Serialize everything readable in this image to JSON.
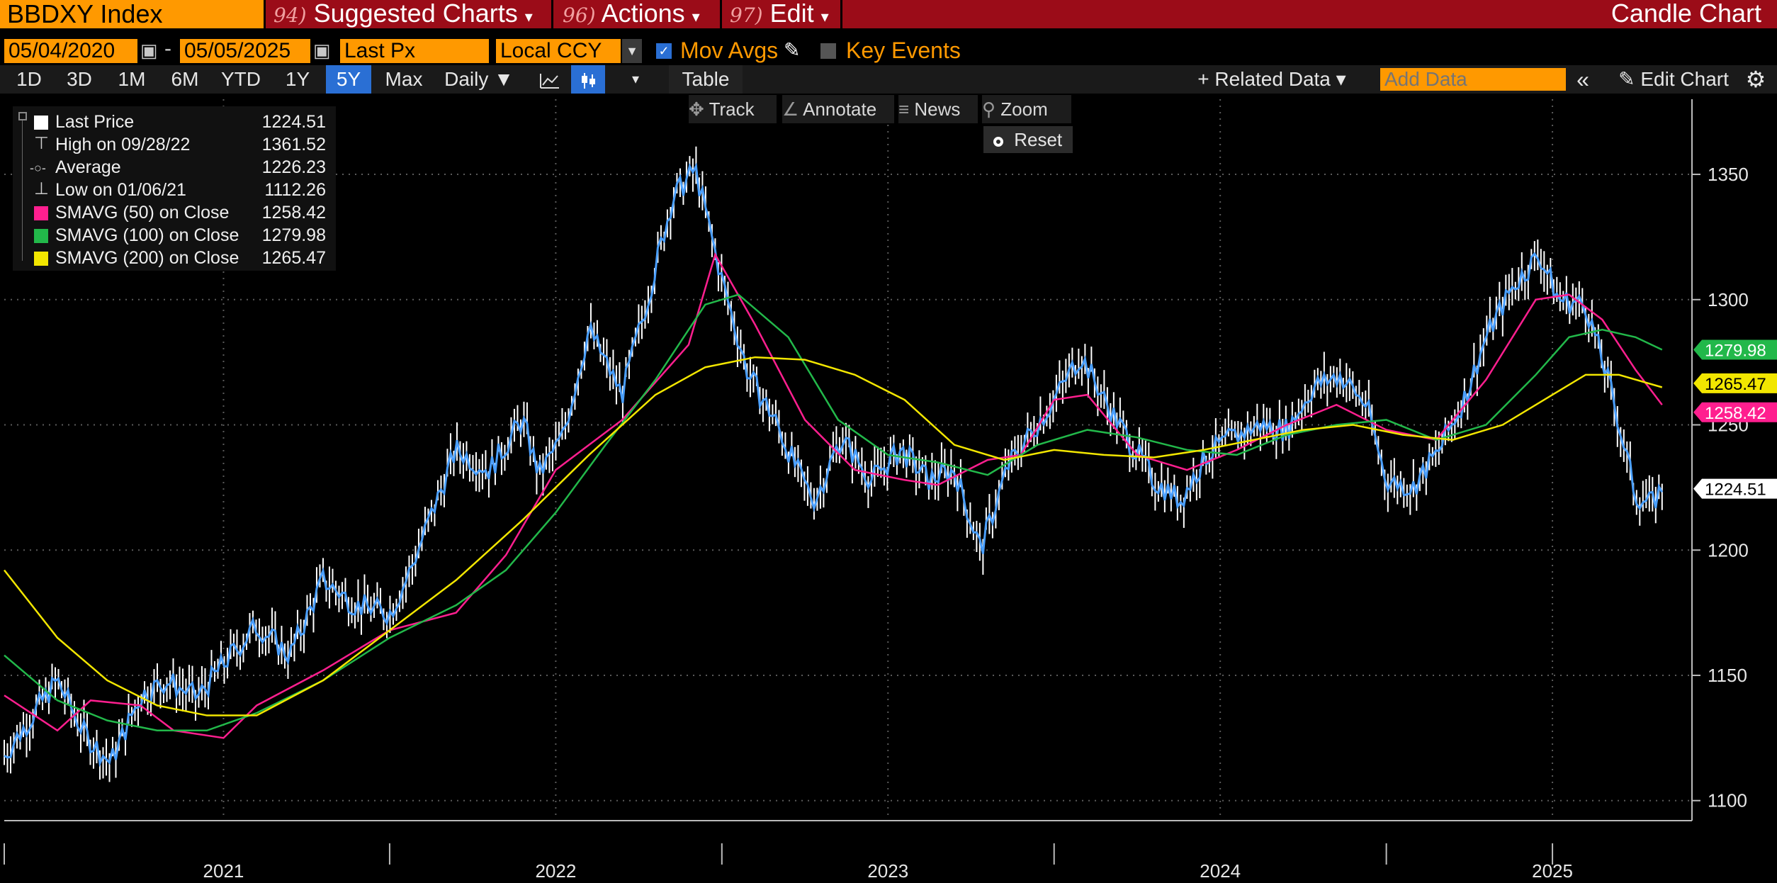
{
  "header": {
    "ticker": "BBDXY Index",
    "menu": [
      {
        "num": "94)",
        "label": "Suggested Charts",
        "arrow": "▾"
      },
      {
        "num": "96)",
        "label": "Actions",
        "arrow": "▾"
      },
      {
        "num": "97)",
        "label": "Edit",
        "arrow": "▾"
      }
    ],
    "chart_type": "Candle Chart",
    "colors": {
      "bar": "#9b0c18",
      "accent": "#ff9900"
    }
  },
  "controls": {
    "start_date": "05/04/2020",
    "date_dash": "-",
    "end_date": "05/05/2025",
    "field": "Last Px",
    "currency": "Local CCY",
    "mov_avgs_label": "Mov Avgs",
    "key_events_label": "Key Events",
    "mov_avgs_checked": true,
    "key_events_checked": false
  },
  "toolbar": {
    "periods": [
      "1D",
      "3D",
      "1M",
      "6M",
      "YTD",
      "1Y",
      "5Y",
      "Max"
    ],
    "selected_period": "5Y",
    "frequency": "Daily ▼",
    "table_label": "Table",
    "related_data_label": "+ Related Data ▾",
    "add_data_placeholder": "Add Data",
    "edit_chart_label": "Edit Chart",
    "icons": [
      "line-chart-icon",
      "candle-chart-icon",
      "dropdown-icon",
      "collapse-icon",
      "pencil-icon",
      "gear-icon"
    ]
  },
  "tools": {
    "track": "Track",
    "annotate": "Annotate",
    "news": "News",
    "zoom": "Zoom",
    "reset": "Reset"
  },
  "legend": [
    {
      "name": "Last Price",
      "value": "1224.51",
      "color": "#ffffff",
      "marker": "square"
    },
    {
      "name": "High on 09/28/22",
      "value": "1361.52",
      "color": "#cccccc",
      "marker": "high"
    },
    {
      "name": "Average",
      "value": "1226.23",
      "color": "#cccccc",
      "marker": "avg"
    },
    {
      "name": "Low on 01/06/21",
      "value": "1112.26",
      "color": "#cccccc",
      "marker": "low"
    },
    {
      "name": "SMAVG (50)  on Close",
      "value": "1258.42",
      "color": "#ff1f8f",
      "marker": "square"
    },
    {
      "name": "SMAVG (100)  on Close",
      "value": "1279.98",
      "color": "#22b84a",
      "marker": "square"
    },
    {
      "name": "SMAVG (200)  on Close",
      "value": "1265.47",
      "color": "#f2e600",
      "marker": "square"
    }
  ],
  "chart_data": {
    "type": "line",
    "x_labels": [
      "2021",
      "2022",
      "2023",
      "2024",
      "2025"
    ],
    "y_ticks": [
      1100,
      1150,
      1200,
      1250,
      1300,
      1350
    ],
    "ylim": [
      1092,
      1380
    ],
    "xlim": [
      2020.34,
      2025.42
    ],
    "grid": true,
    "series": [
      {
        "name": "Last Price",
        "color": "#4a9fff",
        "x": [
          2020.34,
          2020.42,
          2020.5,
          2020.58,
          2020.66,
          2020.75,
          2020.83,
          2020.92,
          2021.01,
          2021.1,
          2021.2,
          2021.3,
          2021.4,
          2021.5,
          2021.55,
          2021.6,
          2021.7,
          2021.8,
          2021.9,
          2021.95,
          2022.02,
          2022.1,
          2022.2,
          2022.28,
          2022.35,
          2022.42,
          2022.5,
          2022.58,
          2022.66,
          2022.74,
          2022.78,
          2022.86,
          2022.95,
          2023.04,
          2023.12,
          2023.2,
          2023.28,
          2023.36,
          2023.42,
          2023.5,
          2023.58,
          2023.66,
          2023.72,
          2023.8,
          2023.88,
          2023.96,
          2024.04,
          2024.12,
          2024.2,
          2024.28,
          2024.36,
          2024.44,
          2024.5,
          2024.58,
          2024.66,
          2024.74,
          2024.8,
          2024.88,
          2024.96,
          2025.02,
          2025.1,
          2025.18,
          2025.25,
          2025.3,
          2025.33
        ],
        "values": [
          1118,
          1133,
          1148,
          1127,
          1115,
          1142,
          1148,
          1141,
          1156,
          1170,
          1158,
          1188,
          1178,
          1175,
          1188,
          1205,
          1240,
          1232,
          1252,
          1230,
          1245,
          1288,
          1262,
          1302,
          1340,
          1352,
          1308,
          1270,
          1252,
          1228,
          1220,
          1245,
          1228,
          1240,
          1228,
          1232,
          1200,
          1233,
          1245,
          1260,
          1278,
          1258,
          1245,
          1228,
          1220,
          1238,
          1245,
          1250,
          1248,
          1265,
          1270,
          1258,
          1228,
          1225,
          1240,
          1262,
          1285,
          1305,
          1318,
          1300,
          1298,
          1262,
          1222,
          1218,
          1225
        ]
      },
      {
        "name": "SMAVG (50)  on Close",
        "color": "#ff1f8f",
        "x": [
          2020.34,
          2020.5,
          2020.6,
          2020.75,
          2020.85,
          2021.0,
          2021.1,
          2021.3,
          2021.5,
          2021.7,
          2021.85,
          2022.0,
          2022.2,
          2022.4,
          2022.48,
          2022.6,
          2022.75,
          2022.9,
          2023.05,
          2023.15,
          2023.3,
          2023.4,
          2023.5,
          2023.6,
          2023.75,
          2023.9,
          2024.05,
          2024.2,
          2024.35,
          2024.5,
          2024.65,
          2024.8,
          2024.95,
          2025.05,
          2025.15,
          2025.25,
          2025.33
        ],
        "values": [
          1142,
          1128,
          1140,
          1138,
          1128,
          1125,
          1138,
          1152,
          1168,
          1175,
          1198,
          1232,
          1252,
          1282,
          1318,
          1290,
          1252,
          1232,
          1228,
          1226,
          1236,
          1238,
          1260,
          1262,
          1238,
          1232,
          1240,
          1250,
          1258,
          1248,
          1244,
          1268,
          1300,
          1302,
          1292,
          1272,
          1258
        ]
      },
      {
        "name": "SMAVG (100)  on Close",
        "color": "#22b84a",
        "x": [
          2020.34,
          2020.5,
          2020.65,
          2020.8,
          2020.95,
          2021.1,
          2021.3,
          2021.5,
          2021.7,
          2021.85,
          2022.0,
          2022.15,
          2022.3,
          2022.45,
          2022.55,
          2022.7,
          2022.85,
          2023.0,
          2023.15,
          2023.3,
          2023.45,
          2023.6,
          2023.75,
          2023.9,
          2024.05,
          2024.2,
          2024.35,
          2024.5,
          2024.65,
          2024.8,
          2024.95,
          2025.05,
          2025.15,
          2025.25,
          2025.33
        ],
        "values": [
          1158,
          1140,
          1132,
          1128,
          1128,
          1135,
          1148,
          1165,
          1178,
          1192,
          1215,
          1242,
          1268,
          1298,
          1302,
          1285,
          1252,
          1238,
          1235,
          1230,
          1242,
          1248,
          1245,
          1240,
          1238,
          1246,
          1250,
          1252,
          1244,
          1250,
          1270,
          1285,
          1288,
          1285,
          1280
        ]
      },
      {
        "name": "SMAVG (200)  on Close",
        "color": "#f2e600",
        "x": [
          2020.34,
          2020.5,
          2020.65,
          2020.8,
          2020.95,
          2021.1,
          2021.3,
          2021.5,
          2021.7,
          2021.9,
          2022.1,
          2022.3,
          2022.45,
          2022.6,
          2022.75,
          2022.9,
          2023.05,
          2023.2,
          2023.35,
          2023.5,
          2023.65,
          2023.8,
          2023.95,
          2024.1,
          2024.25,
          2024.4,
          2024.55,
          2024.7,
          2024.85,
          2025.0,
          2025.1,
          2025.2,
          2025.33
        ],
        "values": [
          1192,
          1165,
          1148,
          1138,
          1134,
          1134,
          1148,
          1168,
          1188,
          1212,
          1238,
          1262,
          1273,
          1277,
          1276,
          1270,
          1260,
          1242,
          1236,
          1240,
          1238,
          1237,
          1240,
          1244,
          1248,
          1250,
          1246,
          1244,
          1250,
          1262,
          1270,
          1270,
          1265
        ]
      }
    ],
    "end_labels": [
      {
        "value": 1279.98,
        "text": "1279.98",
        "color": "#22b84a"
      },
      {
        "value": 1265.47,
        "text": "1265.47",
        "color": "#f2e600"
      },
      {
        "value": 1258.42,
        "text": "1258.42",
        "color": "#ff1f8f"
      },
      {
        "value": 1224.51,
        "text": "1224.51",
        "color": "#ffffff"
      }
    ]
  }
}
